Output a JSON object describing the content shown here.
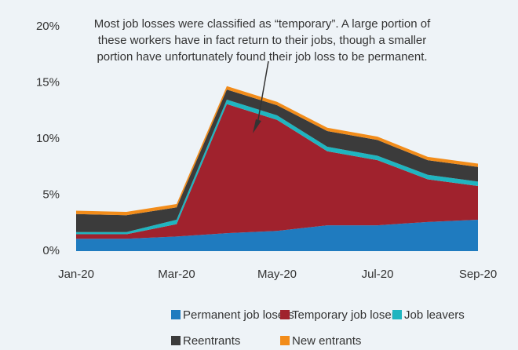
{
  "chart_data": {
    "type": "stacked_area",
    "annotation": [
      "Most job losses were classified as “temporary”. A large portion of",
      "these workers have in fact return to their jobs, though a smaller",
      "portion have unfortunately found their job loss to be permanent."
    ],
    "categories": [
      "Jan-20",
      null,
      "Mar-20",
      null,
      "May-20",
      null,
      "Jul-20",
      null,
      "Sep-20"
    ],
    "series": [
      {
        "name": "Permanent job losers",
        "color": "#1f7bbf",
        "values": [
          1.1,
          1.1,
          1.3,
          1.6,
          1.8,
          2.3,
          2.3,
          2.6,
          2.8
        ]
      },
      {
        "name": "Temporary job losers",
        "color": "#a0222d",
        "values": [
          0.4,
          0.4,
          1.1,
          11.5,
          9.9,
          6.6,
          5.8,
          3.8,
          3.0
        ]
      },
      {
        "name": "Job leavers",
        "color": "#1fb5c0",
        "values": [
          0.2,
          0.2,
          0.4,
          0.4,
          0.4,
          0.4,
          0.4,
          0.4,
          0.4
        ]
      },
      {
        "name": "Reentrants",
        "color": "#3b3b3b",
        "values": [
          1.6,
          1.5,
          1.1,
          0.9,
          0.9,
          1.4,
          1.4,
          1.3,
          1.3
        ]
      },
      {
        "name": "New entrants",
        "color": "#f28c1a",
        "values": [
          0.3,
          0.3,
          0.3,
          0.3,
          0.3,
          0.3,
          0.3,
          0.3,
          0.3
        ]
      }
    ],
    "ylim": [
      0,
      20
    ],
    "yticks": [
      {
        "value": 0,
        "label": "0%"
      },
      {
        "value": 5,
        "label": "5%"
      },
      {
        "value": 10,
        "label": "10%"
      },
      {
        "value": 15,
        "label": "15%"
      },
      {
        "value": 20,
        "label": "20%"
      }
    ]
  }
}
